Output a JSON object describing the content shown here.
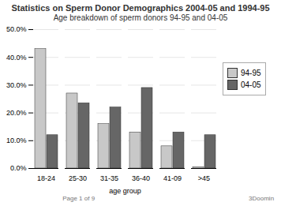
{
  "chart_data": {
    "type": "bar",
    "title": "Statistics on Sperm Donor Demographics 2004-05 and 1994-95",
    "subtitle": "Age breakdown of sperm donors 94-95 and 04-05",
    "categories": [
      "18-24",
      "25-30",
      "31-35",
      "36-40",
      "41-09",
      ">45"
    ],
    "series": [
      {
        "name": "94-95",
        "color": "#c8c8c8",
        "values": [
          43.0,
          27.0,
          16.0,
          13.0,
          8.0,
          0.5
        ]
      },
      {
        "name": "04-05",
        "color": "#666666",
        "values": [
          12.0,
          23.5,
          22.0,
          29.0,
          13.0,
          12.0
        ]
      }
    ],
    "xlabel": "age group",
    "ylim": [
      0,
      50
    ],
    "yticks": [
      {
        "value": 0,
        "label": "0.0%"
      },
      {
        "value": 10,
        "label": "10.0%"
      },
      {
        "value": 20,
        "label": "20.0%"
      },
      {
        "value": 30,
        "label": "30.0%"
      },
      {
        "value": 40,
        "label": "40.0%"
      },
      {
        "value": 50,
        "label": "50.0%"
      }
    ],
    "grid": true,
    "legend": "right",
    "annotations": [
      "Page 1 of 9",
      "3Doomin"
    ]
  }
}
